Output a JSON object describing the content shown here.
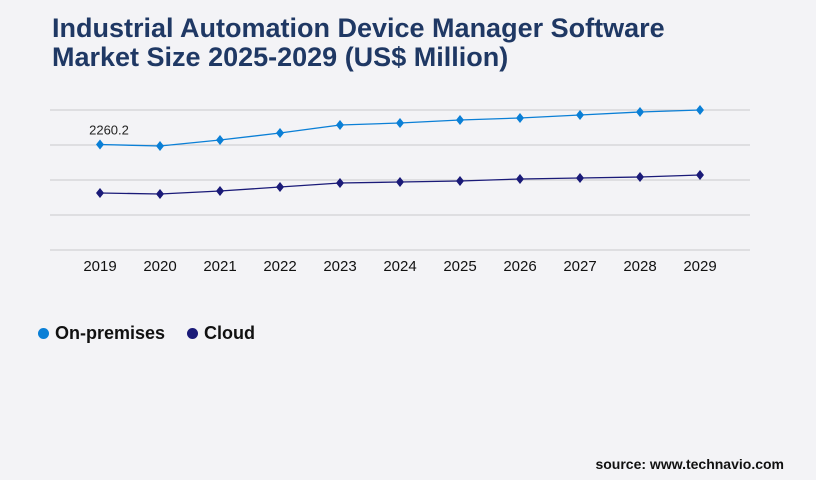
{
  "chart_data": {
    "type": "line",
    "title": "Industrial Automation Device Manager Software Market Size 2025-2029 (US$ Million)",
    "categories": [
      "2019",
      "2020",
      "2021",
      "2022",
      "2023",
      "2024",
      "2025",
      "2026",
      "2027",
      "2028",
      "2029"
    ],
    "series": [
      {
        "name": "On-premises",
        "color": "#0a7fd6",
        "values": [
          2260.2,
          2229,
          2357,
          2507,
          2679,
          2721,
          2786,
          2829,
          2893,
          2957,
          3000
        ]
      },
      {
        "name": "Cloud",
        "color": "#1a1a78",
        "values": [
          1221,
          1200,
          1264,
          1350,
          1436,
          1457,
          1479,
          1521,
          1543,
          1564,
          1607
        ]
      }
    ],
    "annotations": [
      {
        "series": "On-premises",
        "category": "2019",
        "text": "2260.2"
      }
    ],
    "ylim": [
      0,
      3000
    ],
    "yticks": [
      0,
      750,
      1500,
      2250,
      3000
    ],
    "y_tick_labels_shown": false,
    "grid": true,
    "legend_position": "bottom-left",
    "marker": "diamond"
  },
  "source": "source: www.technavio.com"
}
